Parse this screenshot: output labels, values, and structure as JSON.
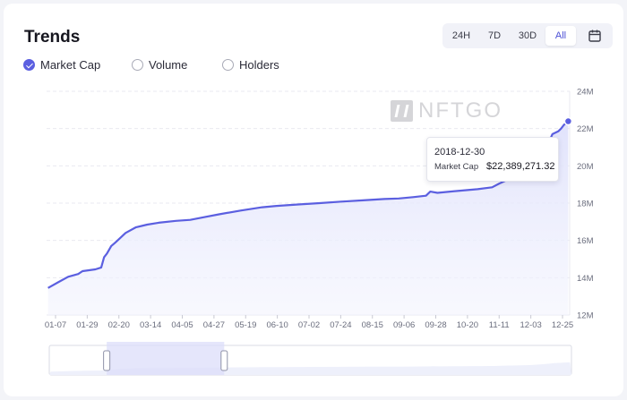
{
  "card": {
    "title": "Trends",
    "metrics": [
      {
        "label": "Market Cap",
        "checked": true
      },
      {
        "label": "Volume",
        "checked": false
      },
      {
        "label": "Holders",
        "checked": false
      }
    ],
    "range_buttons": [
      {
        "label": "24H",
        "active": false
      },
      {
        "label": "7D",
        "active": false
      },
      {
        "label": "30D",
        "active": false
      },
      {
        "label": "All",
        "active": true
      }
    ],
    "calendar_icon": "calendar-icon"
  },
  "watermark": {
    "text": "NFTGO",
    "logo_icon": "nftgo-logo-icon"
  },
  "tooltip": {
    "date": "2018-12-30",
    "label": "Market Cap",
    "value": "$22,389,271.32"
  },
  "colors": {
    "line": "#5b5fe0",
    "fill": "#eceefd",
    "accent": "#5b5fe0",
    "grid": "#e9eaf0",
    "axis_text": "#6b6e7e"
  },
  "chart_data": {
    "type": "area",
    "title": "",
    "xlabel": "",
    "ylabel": "",
    "x_tick_labels": [
      "01-07",
      "01-29",
      "02-20",
      "03-14",
      "04-05",
      "04-27",
      "05-19",
      "06-10",
      "07-02",
      "07-24",
      "08-15",
      "09-06",
      "09-28",
      "10-20",
      "11-11",
      "12-03",
      "12-25"
    ],
    "y_tick_labels": [
      "12M",
      "14M",
      "16M",
      "18M",
      "20M",
      "22M",
      "24M"
    ],
    "ylim": [
      12000000,
      24000000
    ],
    "y_ticks": [
      12000000,
      14000000,
      16000000,
      18000000,
      20000000,
      22000000,
      24000000
    ],
    "grid": true,
    "series": [
      {
        "values": [
          [
            1,
            13.45
          ],
          [
            8,
            13.75
          ],
          [
            15,
            14.05
          ],
          [
            22,
            14.2
          ],
          [
            25,
            14.35
          ],
          [
            34,
            14.45
          ],
          [
            38,
            14.55
          ],
          [
            40,
            15.1
          ],
          [
            42,
            15.3
          ],
          [
            45,
            15.7
          ],
          [
            48,
            15.9
          ],
          [
            55,
            16.4
          ],
          [
            62,
            16.7
          ],
          [
            70,
            16.85
          ],
          [
            78,
            16.95
          ],
          [
            90,
            17.05
          ],
          [
            100,
            17.1
          ],
          [
            110,
            17.25
          ],
          [
            120,
            17.4
          ],
          [
            135,
            17.6
          ],
          [
            150,
            17.78
          ],
          [
            160,
            17.85
          ],
          [
            175,
            17.93
          ],
          [
            190,
            18.0
          ],
          [
            205,
            18.08
          ],
          [
            220,
            18.15
          ],
          [
            235,
            18.22
          ],
          [
            245,
            18.25
          ],
          [
            255,
            18.32
          ],
          [
            264,
            18.4
          ],
          [
            267,
            18.62
          ],
          [
            272,
            18.55
          ],
          [
            285,
            18.65
          ],
          [
            300,
            18.75
          ],
          [
            310,
            18.85
          ],
          [
            315,
            19.05
          ],
          [
            325,
            19.4
          ],
          [
            335,
            19.75
          ],
          [
            342,
            20.3
          ],
          [
            348,
            21.0
          ],
          [
            352,
            21.7
          ],
          [
            356,
            21.85
          ],
          [
            358,
            22.0
          ],
          [
            360,
            22.2
          ],
          [
            363,
            22.39
          ]
        ]
      }
    ],
    "x_domain": [
      0,
      364
    ],
    "highlight_point": {
      "x": 363,
      "y": 22.39
    },
    "navigator": {
      "start_fraction": 0.11,
      "end_fraction": 0.335
    }
  }
}
